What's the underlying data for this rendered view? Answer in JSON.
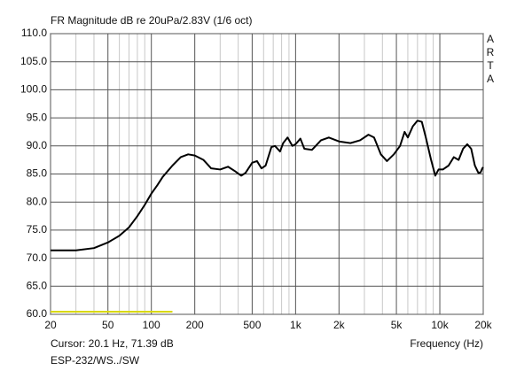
{
  "chart_data": {
    "type": "line",
    "title": "FR Magnitude dB re 20uPa/2.83V (1/6 oct)",
    "side_label": [
      "A",
      "R",
      "T",
      "A"
    ],
    "x_label": "Frequency (Hz)",
    "cursor_text": "Cursor: 20.1 Hz, 71.39 dB",
    "footer": "ESP-232/WS../SW",
    "x_scale": "log",
    "grid": true,
    "xlim": [
      20,
      20000
    ],
    "ylim": [
      60,
      110
    ],
    "xticks": [
      20,
      50,
      100,
      200,
      500,
      {
        "value": 1000,
        "label": "1k"
      },
      {
        "value": 2000,
        "label": "2k"
      },
      {
        "value": 5000,
        "label": "5k"
      },
      {
        "value": 10000,
        "label": "10k"
      },
      {
        "value": 20000,
        "label": "20k"
      }
    ],
    "xticks_minor": [
      30,
      40,
      60,
      70,
      80,
      90,
      300,
      400,
      600,
      700,
      800,
      900,
      3000,
      4000,
      6000,
      7000,
      8000,
      9000
    ],
    "yticks": [
      {
        "value": 60,
        "label": "60.0"
      },
      {
        "value": 65,
        "label": "65.0"
      },
      {
        "value": 70,
        "label": "70.0"
      },
      {
        "value": 75,
        "label": "75.0"
      },
      {
        "value": 80,
        "label": "80.0"
      },
      {
        "value": 85,
        "label": "85.0"
      },
      {
        "value": 90,
        "label": "90.0"
      },
      {
        "value": 95,
        "label": "95.0"
      },
      {
        "value": 100,
        "label": "100.0"
      },
      {
        "value": 105,
        "label": "105.0"
      },
      {
        "value": 110,
        "label": "110.0"
      }
    ],
    "x": [
      20,
      30,
      40,
      50,
      60,
      70,
      80,
      90,
      100,
      110,
      120,
      140,
      160,
      180,
      200,
      230,
      260,
      300,
      340,
      380,
      420,
      450,
      500,
      540,
      580,
      620,
      680,
      720,
      780,
      820,
      880,
      950,
      1000,
      1080,
      1150,
      1300,
      1500,
      1700,
      2000,
      2400,
      2800,
      3200,
      3500,
      3900,
      4300,
      4800,
      5300,
      5700,
      6000,
      6500,
      7000,
      7500,
      8000,
      8700,
      9300,
      9800,
      10500,
      11500,
      12500,
      13500,
      14500,
      15500,
      16500,
      17500,
      18500,
      19200,
      19700,
      20000
    ],
    "series": [
      {
        "color": "#000000",
        "values": [
          71.4,
          71.4,
          71.8,
          72.8,
          74.0,
          75.5,
          77.5,
          79.5,
          81.5,
          83,
          84.5,
          86.5,
          88,
          88.5,
          88.3,
          87.5,
          86,
          85.8,
          86.3,
          85.5,
          84.7,
          85.2,
          87,
          87.3,
          86,
          86.5,
          89.8,
          90,
          89,
          90.5,
          91.5,
          90,
          90.3,
          91.3,
          89.5,
          89.3,
          91,
          91.5,
          90.8,
          90.5,
          91,
          92,
          91.5,
          88.5,
          87.3,
          88.5,
          90,
          92.5,
          91.5,
          93.5,
          94.5,
          94.3,
          91.5,
          87.5,
          84.7,
          85.8,
          85.8,
          86.5,
          88,
          87.5,
          89.5,
          90.3,
          89.5,
          86.5,
          85.2,
          85.3,
          86,
          86.2
        ]
      }
    ]
  }
}
